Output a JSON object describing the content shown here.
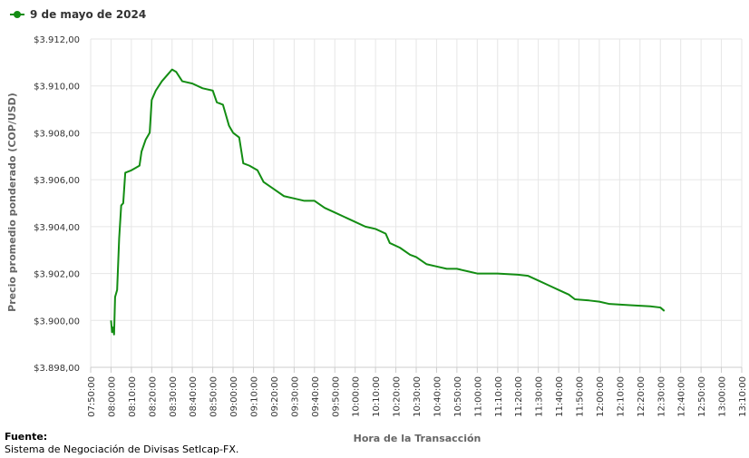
{
  "chart_data": {
    "type": "line",
    "y_label": "Precio promedio ponderado (COP/USD)",
    "x_label": "Hora de la Transacción",
    "x": [
      "08:00:00",
      "08:00:30",
      "08:01:00",
      "08:01:30",
      "08:02:00",
      "08:03:00",
      "08:04:00",
      "08:05:00",
      "08:06:00",
      "08:07:00",
      "08:10:00",
      "08:12:00",
      "08:14:00",
      "08:15:00",
      "08:17:00",
      "08:19:00",
      "08:20:00",
      "08:22:00",
      "08:25:00",
      "08:28:00",
      "08:30:00",
      "08:32:00",
      "08:35:00",
      "08:40:00",
      "08:45:00",
      "08:50:00",
      "08:52:00",
      "08:55:00",
      "08:58:00",
      "09:00:00",
      "09:03:00",
      "09:05:00",
      "09:08:00",
      "09:12:00",
      "09:15:00",
      "09:20:00",
      "09:25:00",
      "09:30:00",
      "09:35:00",
      "09:40:00",
      "09:45:00",
      "09:50:00",
      "09:55:00",
      "10:00:00",
      "10:05:00",
      "10:10:00",
      "10:15:00",
      "10:17:00",
      "10:22:00",
      "10:27:00",
      "10:30:00",
      "10:35:00",
      "10:40:00",
      "10:45:00",
      "10:50:00",
      "10:55:00",
      "11:00:00",
      "11:10:00",
      "11:20:00",
      "11:25:00",
      "11:30:00",
      "11:35:00",
      "11:40:00",
      "11:45:00",
      "11:48:00",
      "11:55:00",
      "12:00:00",
      "12:05:00",
      "12:15:00",
      "12:25:00",
      "12:30:00",
      "12:32:00"
    ],
    "series": [
      {
        "name": "9 de mayo de 2024",
        "color": "#138d13",
        "values": [
          3900.0,
          3899.5,
          3899.7,
          3899.4,
          3901.0,
          3901.3,
          3903.5,
          3904.9,
          3905.0,
          3906.3,
          3906.4,
          3906.5,
          3906.6,
          3907.2,
          3907.7,
          3908.0,
          3909.4,
          3909.8,
          3910.2,
          3910.5,
          3910.7,
          3910.6,
          3910.2,
          3910.1,
          3909.9,
          3909.8,
          3909.3,
          3909.2,
          3908.3,
          3908.0,
          3907.8,
          3906.7,
          3906.6,
          3906.4,
          3905.9,
          3905.6,
          3905.3,
          3905.2,
          3905.1,
          3905.1,
          3904.8,
          3904.6,
          3904.4,
          3904.2,
          3904.0,
          3903.9,
          3903.7,
          3903.3,
          3903.1,
          3902.8,
          3902.7,
          3902.4,
          3902.3,
          3902.2,
          3902.2,
          3902.1,
          3902.0,
          3902.0,
          3901.95,
          3901.9,
          3901.7,
          3901.5,
          3901.3,
          3901.1,
          3900.9,
          3900.85,
          3900.8,
          3900.7,
          3900.65,
          3900.6,
          3900.55,
          3900.4
        ]
      }
    ],
    "xlim": [
      "07:50:00",
      "13:10:00"
    ],
    "xticks": [
      "07:50:00",
      "08:00:00",
      "08:10:00",
      "08:20:00",
      "08:30:00",
      "08:40:00",
      "08:50:00",
      "09:00:00",
      "09:10:00",
      "09:20:00",
      "09:30:00",
      "09:40:00",
      "09:50:00",
      "10:00:00",
      "10:10:00",
      "10:20:00",
      "10:30:00",
      "10:40:00",
      "10:50:00",
      "11:00:00",
      "11:10:00",
      "11:20:00",
      "11:30:00",
      "11:40:00",
      "11:50:00",
      "12:00:00",
      "12:10:00",
      "12:20:00",
      "12:30:00",
      "12:40:00",
      "12:50:00",
      "13:00:00",
      "13:10:00"
    ],
    "ylim": [
      3898,
      3912
    ],
    "yticks": [
      {
        "value": 3898,
        "label": "$3.898,00"
      },
      {
        "value": 3900,
        "label": "$3.900,00"
      },
      {
        "value": 3902,
        "label": "$3.902,00"
      },
      {
        "value": 3904,
        "label": "$3.904,00"
      },
      {
        "value": 3906,
        "label": "$3.906,00"
      },
      {
        "value": 3908,
        "label": "$3.908,00"
      },
      {
        "value": 3910,
        "label": "$3.910,00"
      },
      {
        "value": 3912,
        "label": "$3.912,00"
      }
    ],
    "grid": true,
    "legend": "top-left"
  },
  "source": {
    "label": "Fuente:",
    "text": "Sistema de Negociación de Divisas SetIcap-FX."
  }
}
